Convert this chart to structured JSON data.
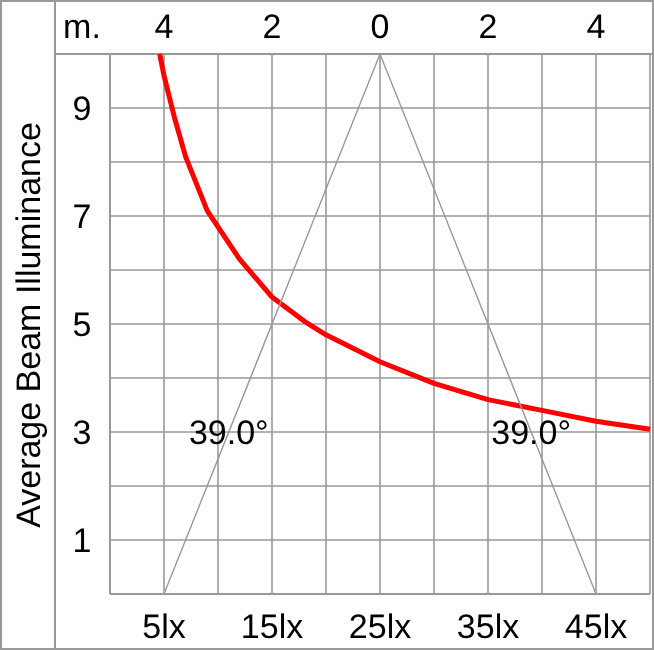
{
  "chart_data": {
    "type": "line",
    "ylabel": "Average Beam Illuminance",
    "x2label": "m.",
    "xlim": [
      0,
      50
    ],
    "xticks": [
      {
        "value": 0,
        "label": null
      },
      {
        "value": 5,
        "label": "5lx"
      },
      {
        "value": 10,
        "label": null
      },
      {
        "value": 15,
        "label": "15lx"
      },
      {
        "value": 20,
        "label": null
      },
      {
        "value": 25,
        "label": "25lx"
      },
      {
        "value": 30,
        "label": null
      },
      {
        "value": 35,
        "label": "35lx"
      },
      {
        "value": 40,
        "label": null
      },
      {
        "value": 45,
        "label": "45lx"
      },
      {
        "value": 50,
        "label": null
      }
    ],
    "x2lim": [
      -5,
      5
    ],
    "x2ticks": [
      {
        "value": -4,
        "label": "4"
      },
      {
        "value": -2,
        "label": "2"
      },
      0,
      2,
      4
    ],
    "ylim": [
      0,
      10
    ],
    "yticks": [
      {
        "value": 0,
        "label": null
      },
      1,
      {
        "value": 2,
        "label": null
      },
      3,
      {
        "value": 4,
        "label": null
      },
      5,
      {
        "value": 6,
        "label": null
      },
      7,
      {
        "value": 8,
        "label": null
      },
      9,
      {
        "value": 10,
        "label": null
      }
    ],
    "grid": true,
    "marker": "none",
    "line_style": "solid",
    "series": [
      {
        "color": "#ff0000",
        "x": [
          4.6,
          5,
          6,
          7,
          8,
          9,
          10,
          12,
          15,
          18,
          20,
          25,
          30,
          35,
          40,
          45,
          50
        ],
        "values": [
          10,
          9.6,
          8.8,
          8.1,
          7.6,
          7.1,
          6.8,
          6.2,
          5.5,
          5.05,
          4.8,
          4.3,
          3.9,
          3.6,
          3.4,
          3.2,
          3.05
        ]
      },
      {
        "color": "#999999",
        "axis": "x2",
        "x": [
          -4,
          0,
          4
        ],
        "values": [
          0,
          10,
          0
        ]
      }
    ],
    "annotations": [
      {
        "text": "39.0°",
        "x": 11,
        "y": 3
      },
      {
        "text": "39.0°",
        "x": 39,
        "y": 3
      }
    ]
  }
}
